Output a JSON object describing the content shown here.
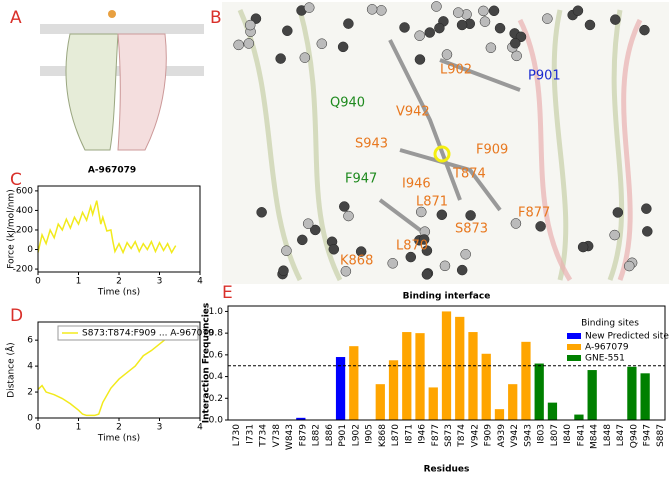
{
  "panels": {
    "a": "A",
    "b": "B",
    "caption_a": "A-967079"
  },
  "structure_labels": [
    {
      "text": "L902"
    },
    {
      "text": "P901"
    },
    {
      "text": "Q940"
    },
    {
      "text": "V942"
    },
    {
      "text": "S943"
    },
    {
      "text": "F909"
    },
    {
      "text": "F947"
    },
    {
      "text": "I946"
    },
    {
      "text": "T874"
    },
    {
      "text": "L871"
    },
    {
      "text": "F877"
    },
    {
      "text": "S873"
    },
    {
      "text": "L870"
    },
    {
      "text": "K868"
    }
  ],
  "chart_data": [
    {
      "type": "line",
      "panel": "C",
      "xlabel": "Time (ns)",
      "ylabel": "Force (kJ/mol/nm)",
      "x": [
        0,
        0.1,
        0.2,
        0.3,
        0.4,
        0.5,
        0.6,
        0.7,
        0.8,
        0.9,
        1.0,
        1.1,
        1.2,
        1.3,
        1.35,
        1.45,
        1.5,
        1.55,
        1.6,
        1.7,
        1.8,
        1.85,
        1.9,
        2.0,
        2.1,
        2.2,
        2.3,
        2.4,
        2.5,
        2.6,
        2.7,
        2.8,
        2.9,
        3.0,
        3.1,
        3.2,
        3.3,
        3.4
      ],
      "series": [
        {
          "color": "#f2ea1c",
          "values": [
            -30,
            150,
            60,
            200,
            120,
            260,
            200,
            310,
            220,
            330,
            260,
            380,
            300,
            440,
            360,
            500,
            380,
            260,
            330,
            190,
            200,
            80,
            -20,
            60,
            -30,
            70,
            10,
            80,
            -20,
            60,
            0,
            80,
            -20,
            70,
            -10,
            60,
            -30,
            40
          ]
        }
      ],
      "xlim": [
        0,
        4
      ],
      "xticks": [
        0,
        1,
        2,
        3,
        4
      ],
      "ylim": [
        -230,
        650
      ],
      "yticks": [
        -200,
        0,
        200,
        400,
        600
      ]
    },
    {
      "type": "line",
      "panel": "D",
      "xlabel": "Time (ns)",
      "ylabel": "Distance (Å)",
      "x": [
        0,
        0.1,
        0.2,
        0.4,
        0.6,
        0.8,
        1.0,
        1.1,
        1.2,
        1.4,
        1.5,
        1.6,
        1.8,
        2.0,
        2.2,
        2.4,
        2.6,
        2.8,
        3.0,
        3.2,
        3.35
      ],
      "series": [
        {
          "name": "S873:T874:F909 ... A-967079",
          "color": "#f2ea1c",
          "values": [
            2.2,
            2.5,
            2.0,
            1.8,
            1.5,
            1.1,
            0.6,
            0.3,
            0.2,
            0.2,
            0.3,
            1.2,
            2.3,
            3.0,
            3.5,
            4.0,
            4.8,
            5.2,
            5.7,
            6.2,
            6.5
          ]
        }
      ],
      "xlim": [
        0,
        4
      ],
      "xticks": [
        0,
        1,
        2,
        3,
        4
      ],
      "ylim": [
        0,
        7.4
      ],
      "yticks": [
        0,
        2,
        4,
        6
      ]
    },
    {
      "type": "bar",
      "panel": "E",
      "title": "Binding interface",
      "xlabel": "Residues",
      "ylabel": "Interaction Frequencies",
      "legend_title": "Binding sites",
      "categories": [
        "L730",
        "I731",
        "T734",
        "V738",
        "W843",
        "F879",
        "L882",
        "L886",
        "P901",
        "L902",
        "I905",
        "K868",
        "L870",
        "I871",
        "I946",
        "F877",
        "S873",
        "T874",
        "V942",
        "F909",
        "A939",
        "V942",
        "S943",
        "I803",
        "L807",
        "I840",
        "F841",
        "M844",
        "L848",
        "L847",
        "Q940",
        "F947",
        "S887"
      ],
      "series": [
        {
          "name": "New Predicted site",
          "color": "#0000ff",
          "values": [
            null,
            null,
            null,
            null,
            null,
            0.02,
            null,
            null,
            0.58,
            null,
            null,
            null,
            null,
            null,
            null,
            null,
            null,
            null,
            null,
            null,
            null,
            null,
            null,
            null,
            null,
            null,
            null,
            null,
            null,
            null,
            null,
            null,
            null
          ]
        },
        {
          "name": "A-967079",
          "color": "#ffa500",
          "values": [
            null,
            null,
            null,
            null,
            null,
            null,
            null,
            null,
            null,
            0.68,
            null,
            0.33,
            0.55,
            0.81,
            0.8,
            0.3,
            1.0,
            0.95,
            0.81,
            0.61,
            0.1,
            0.33,
            0.72,
            null,
            null,
            null,
            null,
            null,
            null,
            null,
            null,
            null,
            null
          ]
        },
        {
          "name": "GNE-551",
          "color": "#008000",
          "values": [
            null,
            null,
            null,
            null,
            null,
            null,
            null,
            null,
            null,
            null,
            null,
            null,
            null,
            null,
            null,
            null,
            null,
            null,
            null,
            null,
            null,
            null,
            null,
            0.52,
            0.16,
            null,
            0.05,
            0.46,
            null,
            null,
            0.49,
            0.43,
            null
          ]
        }
      ],
      "threshold": 0.5,
      "ylim": [
        0,
        1.05
      ],
      "yticks": [
        {
          "value": 0,
          "label": "0.0"
        },
        {
          "value": 0.2,
          "label": "0.2"
        },
        {
          "value": 0.4,
          "label": "0.4"
        },
        {
          "value": 0.6,
          "label": "0.6"
        },
        {
          "value": 0.8,
          "label": "0.8"
        },
        {
          "value": 1.0,
          "label": "1.0"
        }
      ]
    }
  ]
}
